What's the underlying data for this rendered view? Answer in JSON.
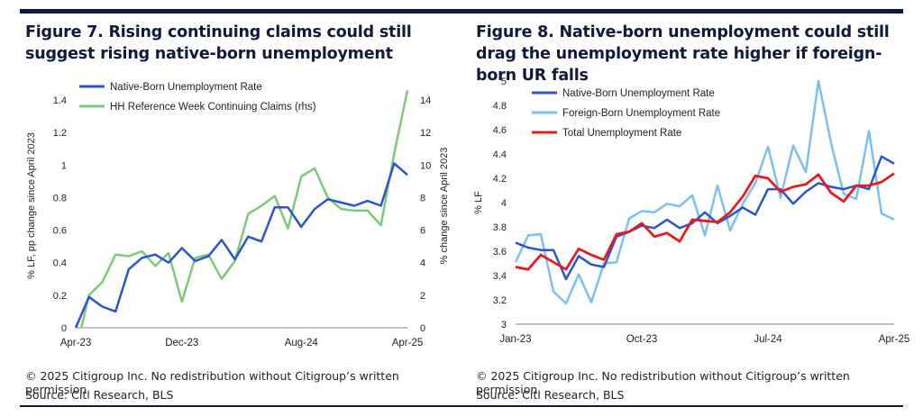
{
  "figure7": {
    "title": "Figure 7. Rising continuing claims could still suggest rising native-born unemployment",
    "copyright": "© 2025 Citigroup Inc. No redistribution without Citigroup’s written permission.",
    "source": "Source: Citi Research, BLS"
  },
  "figure8": {
    "title": "Figure 8. Native-born unemployment could still drag the unemployment rate higher if foreign-born UR falls",
    "copyright": "© 2025 Citigroup Inc. No redistribution without Citigroup’s written permission.",
    "source": "Source: Citi Research, BLS"
  },
  "chart_data": [
    {
      "type": "line",
      "title": "Figure 7. Rising continuing claims could still suggest rising native-born unemployment",
      "ylabel": "% LF, pp change since April 2023",
      "y2label": "% change since April 2023",
      "xticks": [
        "Apr-23",
        "Dec-23",
        "Aug-24",
        "Apr-25"
      ],
      "ylim": [
        0,
        1.5
      ],
      "y2lim": [
        0,
        15
      ],
      "yticks": [
        0,
        0.2,
        0.4,
        0.6,
        0.8,
        1,
        1.2,
        1.4
      ],
      "y2ticks": [
        0,
        2,
        4,
        6,
        8,
        10,
        12,
        14
      ],
      "legend": "top-left",
      "grid": false,
      "series": [
        {
          "name": "Native-Born Unemployment Rate",
          "axis": "left",
          "color": "#2b56c8",
          "values": [
            0,
            0.19,
            0.13,
            0.1,
            0.36,
            0.43,
            0.45,
            0.4,
            0.49,
            0.41,
            0.44,
            0.54,
            0.42,
            0.56,
            0.53,
            0.74,
            0.74,
            0.62,
            0.73,
            0.79,
            0.77,
            0.75,
            0.78,
            0.75,
            1.01,
            0.94
          ]
        },
        {
          "name": "HH Reference Week Continuing Claims (rhs)",
          "axis": "right",
          "color": "#7dc97c",
          "values": [
            -1.5,
            2.0,
            2.8,
            4.5,
            4.4,
            4.7,
            3.8,
            4.6,
            1.6,
            4.3,
            4.5,
            3.0,
            4.1,
            7.0,
            7.5,
            8.1,
            6.1,
            9.3,
            9.8,
            8.0,
            7.3,
            7.2,
            7.2,
            6.3,
            10.7,
            14.6
          ]
        }
      ]
    },
    {
      "type": "line",
      "title": "Figure 8. Native-born unemployment could still drag the unemployment rate higher if foreign-born UR falls",
      "ylabel": "% LF",
      "xticks": [
        "Jan-23",
        "Oct-23",
        "Jul-24",
        "Apr-25"
      ],
      "ylim": [
        3,
        5
      ],
      "yticks": [
        3,
        3.2,
        3.4,
        3.6,
        3.8,
        4,
        4.2,
        4.4,
        4.6,
        4.8,
        5
      ],
      "legend": "top-left",
      "grid": false,
      "series": [
        {
          "name": "Native-Born Unemployment Rate",
          "color": "#2b56c8",
          "values": [
            3.67,
            3.63,
            3.61,
            3.61,
            3.37,
            3.56,
            3.49,
            3.47,
            3.72,
            3.76,
            3.81,
            3.79,
            3.86,
            3.79,
            3.83,
            3.92,
            3.83,
            3.89,
            3.96,
            3.9,
            4.11,
            4.11,
            3.99,
            4.09,
            4.16,
            4.13,
            4.11,
            4.14,
            4.11,
            4.38,
            4.32
          ]
        },
        {
          "name": "Foreign-Born Unemployment Rate",
          "color": "#7cc0ef",
          "values": [
            3.51,
            3.73,
            3.74,
            3.27,
            3.17,
            3.41,
            3.18,
            3.5,
            3.51,
            3.87,
            3.93,
            3.92,
            3.99,
            3.97,
            4.06,
            3.73,
            4.14,
            3.77,
            3.99,
            4.16,
            4.46,
            4.04,
            4.47,
            4.25,
            5.0,
            4.49,
            4.07,
            4.03,
            4.59,
            3.91,
            3.86
          ]
        },
        {
          "name": "Total Unemployment Rate",
          "color": "#e41c1c",
          "values": [
            3.47,
            3.45,
            3.57,
            3.51,
            3.45,
            3.62,
            3.57,
            3.53,
            3.74,
            3.76,
            3.83,
            3.72,
            3.75,
            3.68,
            3.86,
            3.85,
            3.84,
            3.92,
            4.05,
            4.22,
            4.2,
            4.09,
            4.13,
            4.15,
            4.23,
            4.08,
            4.01,
            4.14,
            4.14,
            4.17,
            4.24
          ]
        }
      ]
    }
  ]
}
